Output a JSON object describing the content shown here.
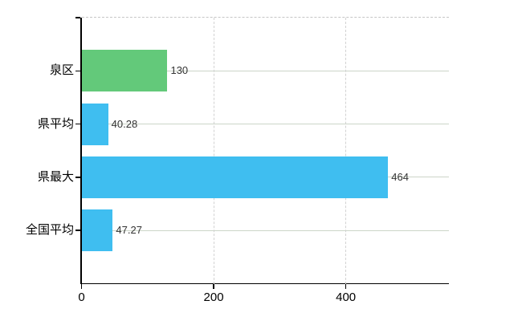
{
  "chart_data": {
    "type": "bar",
    "orientation": "horizontal",
    "title": "",
    "xlabel": "",
    "ylabel": "",
    "categories": [
      "泉区",
      "県平均",
      "県最大",
      "全国平均"
    ],
    "values": [
      130,
      40.28,
      464,
      47.27
    ],
    "value_labels": [
      "130",
      "40.28",
      "464",
      "47.27"
    ],
    "highlight_index": 0,
    "xlim": [
      0,
      556
    ],
    "xticks": [
      0,
      200,
      400
    ],
    "xtick_labels": [
      "0",
      "200",
      "400"
    ],
    "grid": true,
    "legend": false
  },
  "colors": {
    "highlight_bar": "#63c97a",
    "default_bar": "#3fbef0",
    "h_gridline": "#ccd5c8",
    "v_gridline": "#d2d2d2",
    "top_border": "#c6c6c6",
    "axis": "#000000",
    "category_text": "#000000",
    "value_text": "#333333",
    "tick_text": "#000000",
    "background": "#ffffff"
  }
}
